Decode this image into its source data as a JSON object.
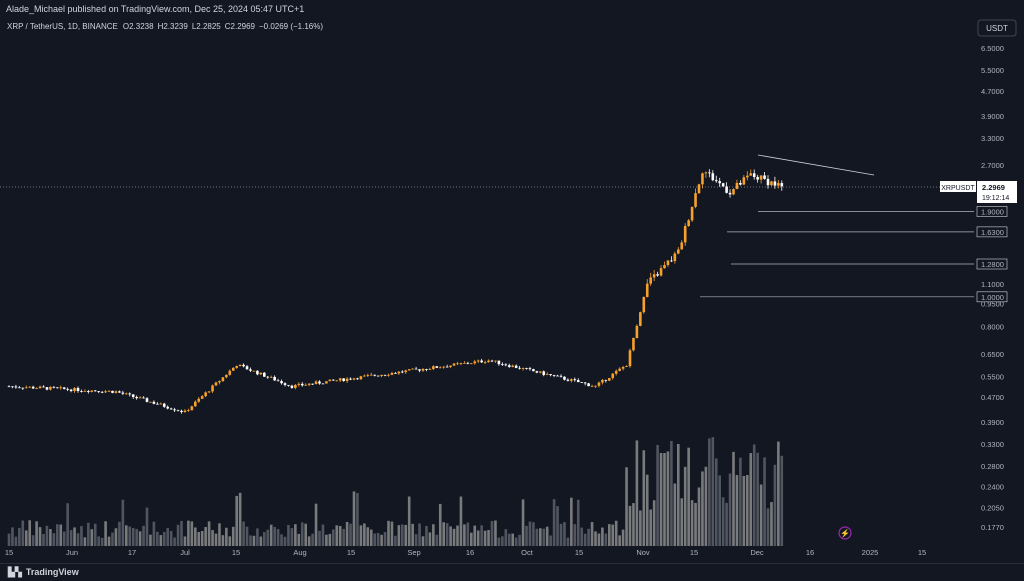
{
  "header": {
    "publisher": "Alade_Michael published on TradingView.com, Dec 25, 2024 05:47 UTC+1"
  },
  "currency_button": {
    "label": "USDT"
  },
  "chart_data": {
    "type": "candlestick",
    "title": "XRP / TetherUS, 1D, BINANCE",
    "ohlc_readout": {
      "o_label": "O",
      "o": "2.3238",
      "h_label": "H",
      "h": "2.3239",
      "l_label": "L",
      "l": "2.2825",
      "c_label": "C",
      "c": "2.2969",
      "change": "−0.0269 (−1.16%)"
    },
    "y_axis": {
      "scale": "log",
      "ticks": [
        "6.5000",
        "5.5000",
        "4.7000",
        "3.9000",
        "3.3000",
        "2.7000",
        "1.9000",
        "1.6300",
        "1.2800",
        "1.1000",
        "1.0000",
        "0.9500",
        "0.8000",
        "0.6500",
        "0.5500",
        "0.4700",
        "0.3900",
        "0.3300",
        "0.2800",
        "0.2400",
        "0.2050",
        "0.1770"
      ]
    },
    "x_axis": {
      "ticks": [
        "15",
        "Jun",
        "17",
        "Jul",
        "15",
        "Aug",
        "15",
        "Sep",
        "16",
        "Oct",
        "15",
        "Nov",
        "15",
        "Dec",
        "16",
        "2025",
        "15"
      ]
    },
    "current_price": {
      "symbol": "XRPUSDT",
      "value": "2.2969",
      "countdown": "19:12:14"
    },
    "horizontal_levels": [
      "1.9000",
      "1.6300",
      "1.2800",
      "1.0000"
    ],
    "key_points": [
      {
        "date": "May 15",
        "close": 0.51
      },
      {
        "date": "Jun 15",
        "close": 0.49
      },
      {
        "date": "Jul 5",
        "close": 0.42
      },
      {
        "date": "Jul 20",
        "close": 0.6
      },
      {
        "date": "Aug 5",
        "close": 0.51
      },
      {
        "date": "Sep 1",
        "close": 0.56
      },
      {
        "date": "Oct 1",
        "close": 0.62
      },
      {
        "date": "Nov 1",
        "close": 0.51
      },
      {
        "date": "Nov 10",
        "close": 0.6
      },
      {
        "date": "Nov 16",
        "close": 1.1
      },
      {
        "date": "Nov 25",
        "close": 1.4
      },
      {
        "date": "Dec 2",
        "close": 2.6
      },
      {
        "date": "Dec 10",
        "close": 2.2
      },
      {
        "date": "Dec 16",
        "close": 2.5
      },
      {
        "date": "Dec 25",
        "close": 2.2969
      }
    ],
    "colors": {
      "up": "#f7a12d",
      "down": "#ffffff",
      "volume_up": "#8c8c8c",
      "volume_down": "#5d606b",
      "grid": "#1e222d",
      "background": "#131722"
    }
  },
  "footer": {
    "brand": "TradingView"
  }
}
